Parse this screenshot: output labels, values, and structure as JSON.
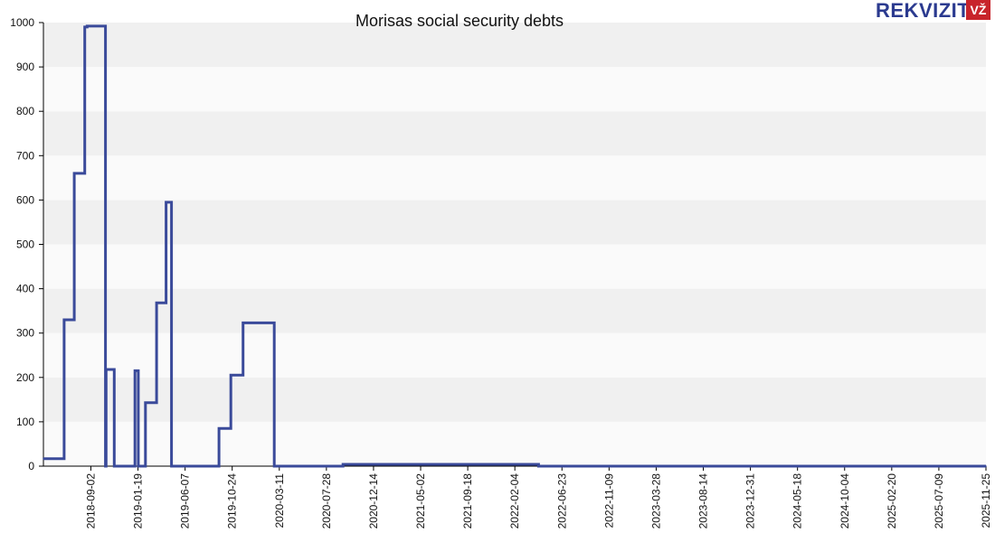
{
  "chart_data": {
    "type": "line",
    "step": true,
    "title": "Morisas social security debts",
    "xlabel": "",
    "ylabel": "",
    "ylim": [
      0,
      1000
    ],
    "yticks": [
      0,
      100,
      200,
      300,
      400,
      500,
      600,
      700,
      800,
      900,
      1000
    ],
    "xlim": [
      "2018-04-15",
      "2025-11-25"
    ],
    "xticks": [
      "2018-09-02",
      "2019-01-19",
      "2019-06-07",
      "2019-10-24",
      "2020-03-11",
      "2020-07-28",
      "2020-12-14",
      "2021-05-02",
      "2021-09-18",
      "2022-02-04",
      "2022-06-23",
      "2022-11-09",
      "2023-03-28",
      "2023-08-14",
      "2023-12-31",
      "2024-05-18",
      "2024-10-04",
      "2025-02-20",
      "2025-07-09",
      "2025-11-25"
    ],
    "grid": "horizontal bands",
    "colors": {
      "line": "#3a4a9a",
      "band_dark": "#f0f0f0",
      "band_light": "#fafafa",
      "axis": "#000000"
    },
    "series": [
      {
        "points": [
          [
            "2018-04-15",
            17
          ],
          [
            "2018-06-15",
            330
          ],
          [
            "2018-07-15",
            660
          ],
          [
            "2018-08-15",
            990
          ],
          [
            "2018-08-22",
            992
          ],
          [
            "2018-10-15",
            0
          ],
          [
            "2018-10-17",
            218
          ],
          [
            "2018-11-10",
            0
          ],
          [
            "2019-01-10",
            215
          ],
          [
            "2019-01-20",
            0
          ],
          [
            "2019-02-10",
            143
          ],
          [
            "2019-03-15",
            368
          ],
          [
            "2019-04-12",
            595
          ],
          [
            "2019-04-28",
            0
          ],
          [
            "2019-09-15",
            85
          ],
          [
            "2019-10-20",
            205
          ],
          [
            "2019-11-25",
            323
          ],
          [
            "2020-02-25",
            0
          ],
          [
            "2020-09-15",
            4
          ],
          [
            "2022-04-15",
            0
          ],
          [
            "2025-11-25",
            0
          ]
        ]
      }
    ]
  },
  "logo": {
    "text": "REKVIZITAI",
    "badge": "VŽ"
  }
}
